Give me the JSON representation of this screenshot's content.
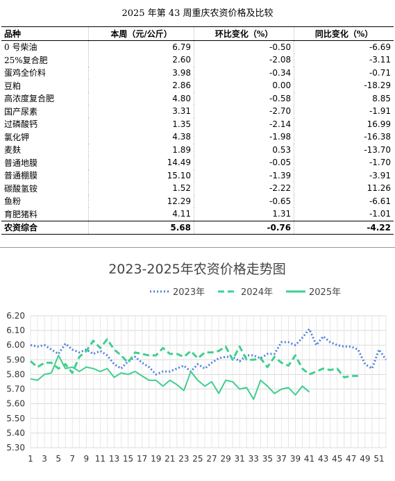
{
  "table": {
    "title": "2025 年第 43 周重庆农资价格及比较",
    "headers": [
      "品种",
      "本周（元/公斤）",
      "环比变化（%）",
      "同比变化（%）"
    ],
    "rows": [
      [
        "0 号柴油",
        "6.79",
        "-0.50",
        "-6.69"
      ],
      [
        "25%复合肥",
        "2.60",
        "-2.08",
        "-3.11"
      ],
      [
        "蛋鸡全价料",
        "3.98",
        "-0.34",
        "-0.71"
      ],
      [
        "豆粕",
        "2.86",
        "0.00",
        "-18.29"
      ],
      [
        "高浓度复合肥",
        "4.80",
        "-0.58",
        "8.85"
      ],
      [
        "国产尿素",
        "3.31",
        "-2.70",
        "-1.91"
      ],
      [
        "过磷酸钙",
        "1.35",
        "-2.14",
        "16.99"
      ],
      [
        "氯化钾",
        "4.38",
        "-1.98",
        "-16.38"
      ],
      [
        "麦麸",
        "1.89",
        "0.53",
        "-13.70"
      ],
      [
        "普通地膜",
        "14.49",
        "-0.05",
        "-1.70"
      ],
      [
        "普通棚膜",
        "15.10",
        "-1.39",
        "-3.91"
      ],
      [
        "碳酸氢铵",
        "1.52",
        "-2.22",
        "11.26"
      ],
      [
        "鱼粉",
        "12.29",
        "-0.65",
        "-6.61"
      ],
      [
        "育肥猪料",
        "4.11",
        "1.31",
        "-1.01"
      ]
    ],
    "total": [
      "农资综合",
      "5.68",
      "-0.76",
      "-4.22"
    ]
  },
  "chart_data": {
    "type": "line",
    "title": "2023-2025年农资价格走势图",
    "xlabel": "",
    "ylabel": "",
    "x_ticks": [
      1,
      3,
      5,
      7,
      9,
      11,
      13,
      15,
      17,
      19,
      21,
      23,
      25,
      27,
      29,
      31,
      33,
      35,
      37,
      39,
      41,
      43,
      45,
      47,
      49,
      51
    ],
    "ylim": [
      5.3,
      6.2
    ],
    "y_ticks": [
      "6.20",
      "6.10",
      "6.00",
      "5.90",
      "5.80",
      "5.70",
      "5.60",
      "5.50",
      "5.40",
      "5.30"
    ],
    "legend_position": "top",
    "grid": true,
    "series": [
      {
        "name": "2023年",
        "color": "#4f7fe0",
        "dash": "dotted",
        "values": [
          6.0,
          5.99,
          6.0,
          5.97,
          5.94,
          6.01,
          5.97,
          5.95,
          5.97,
          5.94,
          5.96,
          5.93,
          5.87,
          5.84,
          5.89,
          5.92,
          5.88,
          5.85,
          5.8,
          5.82,
          5.82,
          5.84,
          5.86,
          5.82,
          5.87,
          5.84,
          5.88,
          5.91,
          5.92,
          5.92,
          5.89,
          5.93,
          5.93,
          5.91,
          5.94,
          5.94,
          6.02,
          6.02,
          6.0,
          6.05,
          6.11,
          6.0,
          6.06,
          6.02,
          6.0,
          5.99,
          5.99,
          5.97,
          5.87,
          5.84,
          5.97,
          5.9
        ]
      },
      {
        "name": "2024年",
        "color": "#3fcf8e",
        "dash": "dashed",
        "values": [
          5.89,
          5.85,
          5.88,
          5.88,
          5.84,
          5.87,
          5.81,
          5.92,
          5.96,
          6.03,
          5.98,
          6.04,
          5.97,
          5.93,
          5.88,
          5.95,
          5.94,
          5.93,
          5.93,
          5.98,
          5.94,
          5.94,
          5.92,
          5.96,
          5.91,
          5.95,
          5.95,
          5.96,
          5.99,
          5.9,
          5.99,
          5.9,
          5.9,
          5.91,
          5.85,
          5.92,
          5.88,
          5.86,
          5.93,
          5.84,
          5.8,
          5.82,
          5.84,
          5.83,
          5.84,
          5.78,
          5.79,
          5.79
        ]
      },
      {
        "name": "2025年",
        "color": "#3fcf8e",
        "dash": "solid",
        "values": [
          5.77,
          5.76,
          5.8,
          5.81,
          5.93,
          5.84,
          5.85,
          5.82,
          5.85,
          5.84,
          5.82,
          5.84,
          5.78,
          5.81,
          5.8,
          5.82,
          5.79,
          5.76,
          5.76,
          5.72,
          5.76,
          5.73,
          5.69,
          5.82,
          5.76,
          5.72,
          5.75,
          5.67,
          5.76,
          5.75,
          5.7,
          5.71,
          5.63,
          5.76,
          5.72,
          5.67,
          5.7,
          5.71,
          5.66,
          5.72,
          5.68
        ]
      }
    ]
  }
}
